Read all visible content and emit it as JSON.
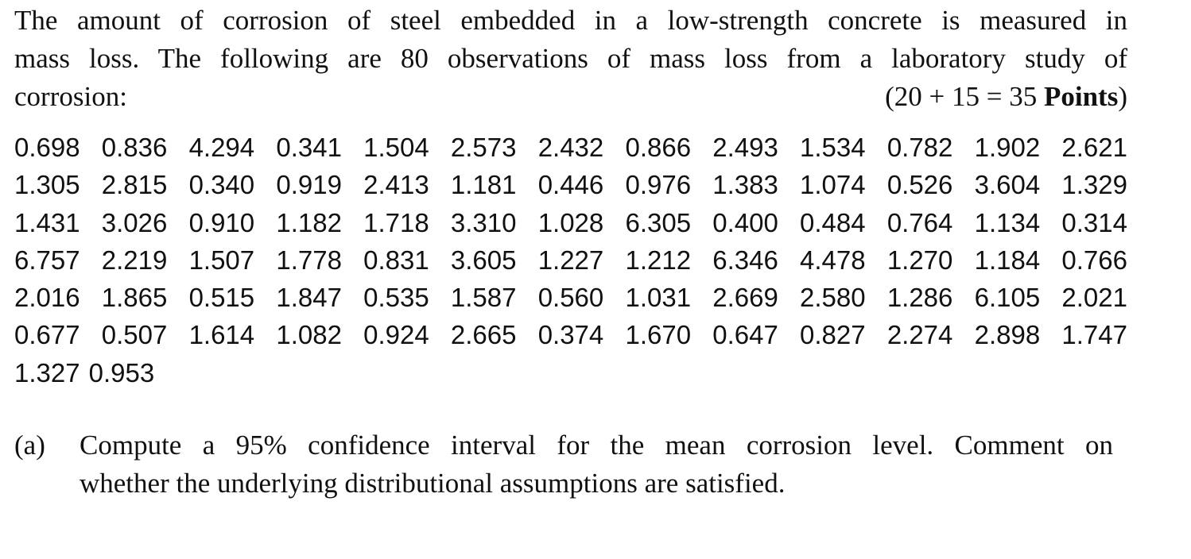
{
  "intro": {
    "line1": "The amount of corrosion of steel embedded in a low-strength concrete is measured in",
    "line2": "mass loss. The following are 80 observations of mass loss from a laboratory study of",
    "line3": "corrosion:",
    "points_prefix": "(20 + 15 = 35 ",
    "points_bold": "Points",
    "points_suffix": ")"
  },
  "data_rows": [
    [
      "0.698",
      "0.836",
      "4.294",
      "0.341",
      "1.504",
      "2.573",
      "2.432",
      "0.866",
      "2.493",
      "1.534",
      "0.782",
      "1.902",
      "2.621"
    ],
    [
      "1.305",
      "2.815",
      "0.340",
      "0.919",
      "2.413",
      "1.181",
      "0.446",
      "0.976",
      "1.383",
      "1.074",
      "0.526",
      "3.604",
      "1.329"
    ],
    [
      "1.431",
      "3.026",
      "0.910",
      "1.182",
      "1.718",
      "3.310",
      "1.028",
      "6.305",
      "0.400",
      "0.484",
      "0.764",
      "1.134",
      "0.314"
    ],
    [
      "6.757",
      "2.219",
      "1.507",
      "1.778",
      "0.831",
      "3.605",
      "1.227",
      "1.212",
      "6.346",
      "4.478",
      "1.270",
      "1.184",
      "0.766"
    ],
    [
      "2.016",
      "1.865",
      "0.515",
      "1.847",
      "0.535",
      "1.587",
      "0.560",
      "1.031",
      "2.669",
      "2.580",
      "1.286",
      "6.105",
      "2.021"
    ],
    [
      "0.677",
      "0.507",
      "1.614",
      "1.082",
      "0.924",
      "2.665",
      "0.374",
      "1.670",
      "0.647",
      "0.827",
      "2.274",
      "2.898",
      "1.747"
    ],
    [
      "1.327",
      "0.953"
    ]
  ],
  "question_a": {
    "label": "(a)",
    "line1": "Compute a 95% confidence interval for the mean corrosion level. Comment on",
    "line2": "whether the underlying distributional assumptions are satisfied."
  }
}
